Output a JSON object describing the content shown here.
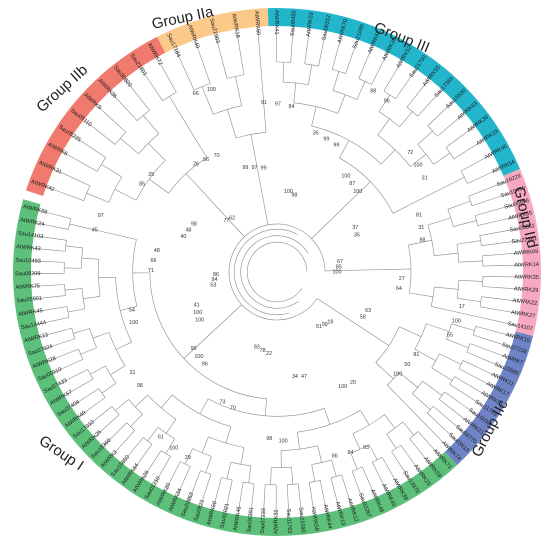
{
  "groups": [
    {
      "key": "IIb",
      "label": "Group IIb",
      "color": "#F07A6E",
      "a0": 198,
      "a1": 243
    },
    {
      "key": "IIa",
      "label": "Group IIa",
      "color": "#FBC98A",
      "a0": 243,
      "a1": 268
    },
    {
      "key": "III",
      "label": "Group III",
      "color": "#22B5CB",
      "a0": 268,
      "a1": 337
    },
    {
      "key": "IId",
      "label": "Group IId",
      "color": "#F6A9C0",
      "a0": 337,
      "a1": 14
    },
    {
      "key": "IIc",
      "label": "Group IIc",
      "color": "#6F84C6",
      "a0": 14,
      "a1": 47
    },
    {
      "key": "I",
      "label": "Group I",
      "color": "#5DC07A",
      "a0": 47,
      "a1": 196
    }
  ],
  "leaves": {
    "IIb": [
      "AtWRK42",
      "AtWRK31",
      "AtWRK6",
      "Sau05225",
      "Sau05110",
      "AtWRK9",
      "AtWRK36",
      "Sau30820",
      "Sau21601",
      "AtWRK72"
    ],
    "IIa": [
      "Sau17184",
      "AtWRK40",
      "Sau21903",
      "AtWRK18",
      "AtWRK60"
    ],
    "III": [
      "AtWRK41",
      "Sau08435",
      "AtWRK53",
      "Sau06312",
      "AtWRK70",
      "Sau21090",
      "AtWRK62",
      "AtWRK38",
      "AtWRK52",
      "Sau21700",
      "AtWRK55",
      "Sau17365",
      "Sau15630",
      "AtWRK63",
      "AtWRK30",
      "AtWRK19",
      "AtWRK46",
      "AtWRK54"
    ],
    "IId": [
      "Sau19229",
      "Sau10490",
      "Sau08698",
      "AtWRK65",
      "Sau00581",
      "Sau22361",
      "AtWRK69",
      "AtWRK14",
      "AtWRK35",
      "AtWRK29",
      "AtWRK22",
      "AtWRK27",
      "Sau14107"
    ],
    "IIc": [
      "AtWRK15",
      "Sau07238",
      "AtWRK7",
      "Sau15580",
      "AtWRK11",
      "AtWRK17",
      "AtWRK51",
      "Sau11703",
      "Sau10030",
      "AtWRK21",
      "Sau06770",
      "Sau03613",
      "AtWRK74"
    ],
    "I": [
      "AtWRK71",
      "AtWRK59",
      "AtWRK23",
      "Sau13970",
      "AtWRK39",
      "AtWRK43",
      "AtWRK48",
      "Sau02267",
      "AtWRK12",
      "AtWRK13",
      "AtWRK44",
      "AtWRK58",
      "Sau21090",
      "Sau11702",
      "AtWRK32",
      "Sau07233",
      "Sau00391",
      "AtWRK45",
      "Sau02021",
      "AtWRK50",
      "Sau0821",
      "Sau20853",
      "AtWRK34",
      "AtWRK20",
      "Sau01210",
      "AtWRK26",
      "AtWRK64",
      "Sau15650",
      "AtWRK2",
      "Sau18360",
      "AtWRK25",
      "Sau17010",
      "AtWRK49",
      "Sau07404",
      "AtWRK57",
      "Sau07433",
      "Sau00910",
      "AtWRK28",
      "Sau07624",
      "AtWRK13",
      "Sau14444",
      "AtWRK45",
      "Sau05901",
      "AtWRK75",
      "Sau09209",
      "Sau10493",
      "AtWRK43",
      "Sau14103",
      "AtWRK24",
      "AtWRK58"
    ]
  },
  "bootstrap_values": [
    "100",
    "90",
    "84",
    "51",
    "48",
    "31",
    "93",
    "70",
    "55",
    "41",
    "99",
    "86",
    "98",
    "88",
    "61",
    "99",
    "100",
    "86",
    "100",
    "98",
    "62",
    "64",
    "31",
    "98",
    "100",
    "97",
    "35",
    "73",
    "100",
    "58",
    "54",
    "96",
    "34",
    "25",
    "85",
    "100",
    "97",
    "99",
    "66",
    "100",
    "78",
    "56",
    "100",
    "100",
    "99",
    "84",
    "48",
    "31",
    "100",
    "97",
    "50",
    "94",
    "87",
    "100",
    "77",
    "27",
    "98",
    "100",
    "20",
    "45",
    "37",
    "70",
    "66",
    "63",
    "100",
    "88",
    "47",
    "85",
    "67",
    "96",
    "91",
    "19",
    "71",
    "72",
    "22",
    "26",
    "17",
    "100",
    "35",
    "93",
    "40",
    "81",
    "29",
    "99",
    "81",
    "53",
    "100"
  ],
  "colors": {
    "branch": "#8a8a8a",
    "leaf_text": "#1a1a1a",
    "value_text": "#333333"
  }
}
